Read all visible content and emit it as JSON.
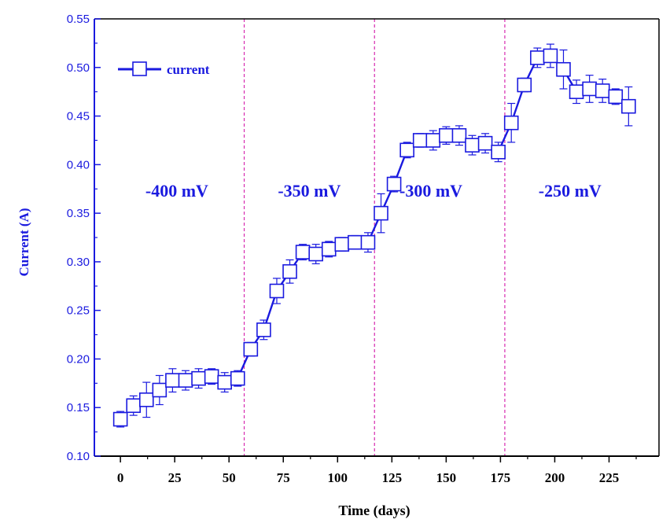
{
  "colors": {
    "series": "#1a1adf",
    "divider": "#d62ab0",
    "axis": "#000000"
  },
  "chart_data": {
    "type": "line",
    "xlabel": "Time (days)",
    "ylabel": "Current (A)",
    "xlim": [
      -12,
      248
    ],
    "ylim": [
      0.1,
      0.55
    ],
    "x_ticks": [
      "0",
      "25",
      "50",
      "75",
      "100",
      "125",
      "150",
      "175",
      "200",
      "225"
    ],
    "x_tick_values": [
      0,
      25,
      50,
      75,
      100,
      125,
      150,
      175,
      200,
      225
    ],
    "y_ticks": [
      "0.10",
      "0.15",
      "0.20",
      "0.25",
      "0.30",
      "0.35",
      "0.40",
      "0.45",
      "0.50",
      "0.55"
    ],
    "y_tick_values": [
      0.1,
      0.15,
      0.2,
      0.25,
      0.3,
      0.35,
      0.4,
      0.45,
      0.5,
      0.55
    ],
    "grid": false,
    "legend": "top-left",
    "marker": "open-square",
    "series": [
      {
        "name": "current",
        "x": [
          0,
          6,
          12,
          18,
          24,
          30,
          36,
          42,
          48,
          54,
          60,
          66,
          72,
          78,
          84,
          90,
          96,
          102,
          108,
          114,
          120,
          126,
          132,
          138,
          144,
          150,
          156,
          162,
          168,
          174,
          180,
          186,
          192,
          198,
          204,
          210,
          216,
          222,
          228,
          234
        ],
        "y": [
          0.138,
          0.152,
          0.158,
          0.168,
          0.178,
          0.178,
          0.18,
          0.182,
          0.176,
          0.18,
          0.21,
          0.23,
          0.27,
          0.29,
          0.31,
          0.308,
          0.313,
          0.318,
          0.32,
          0.32,
          0.35,
          0.38,
          0.415,
          0.425,
          0.425,
          0.43,
          0.43,
          0.42,
          0.422,
          0.413,
          0.443,
          0.482,
          0.51,
          0.512,
          0.498,
          0.475,
          0.478,
          0.476,
          0.47,
          0.46
        ],
        "error": [
          0.008,
          0.01,
          0.018,
          0.015,
          0.012,
          0.01,
          0.01,
          0.008,
          0.01,
          0.008,
          0.007,
          0.01,
          0.013,
          0.012,
          0.008,
          0.01,
          0.008,
          0.007,
          0.007,
          0.01,
          0.02,
          0.008,
          0.008,
          0.007,
          0.01,
          0.009,
          0.01,
          0.01,
          0.01,
          0.01,
          0.02,
          0.007,
          0.01,
          0.012,
          0.02,
          0.012,
          0.014,
          0.012,
          0.008,
          0.02
        ]
      }
    ],
    "dividers_x": [
      57,
      117,
      177
    ],
    "annotations": [
      {
        "text": "-400 mV",
        "x": 26,
        "y": 0.367
      },
      {
        "text": "-350 mV",
        "x": 87,
        "y": 0.367
      },
      {
        "text": "-300 mV",
        "x": 143,
        "y": 0.367
      },
      {
        "text": "-250 mV",
        "x": 207,
        "y": 0.367
      }
    ]
  }
}
